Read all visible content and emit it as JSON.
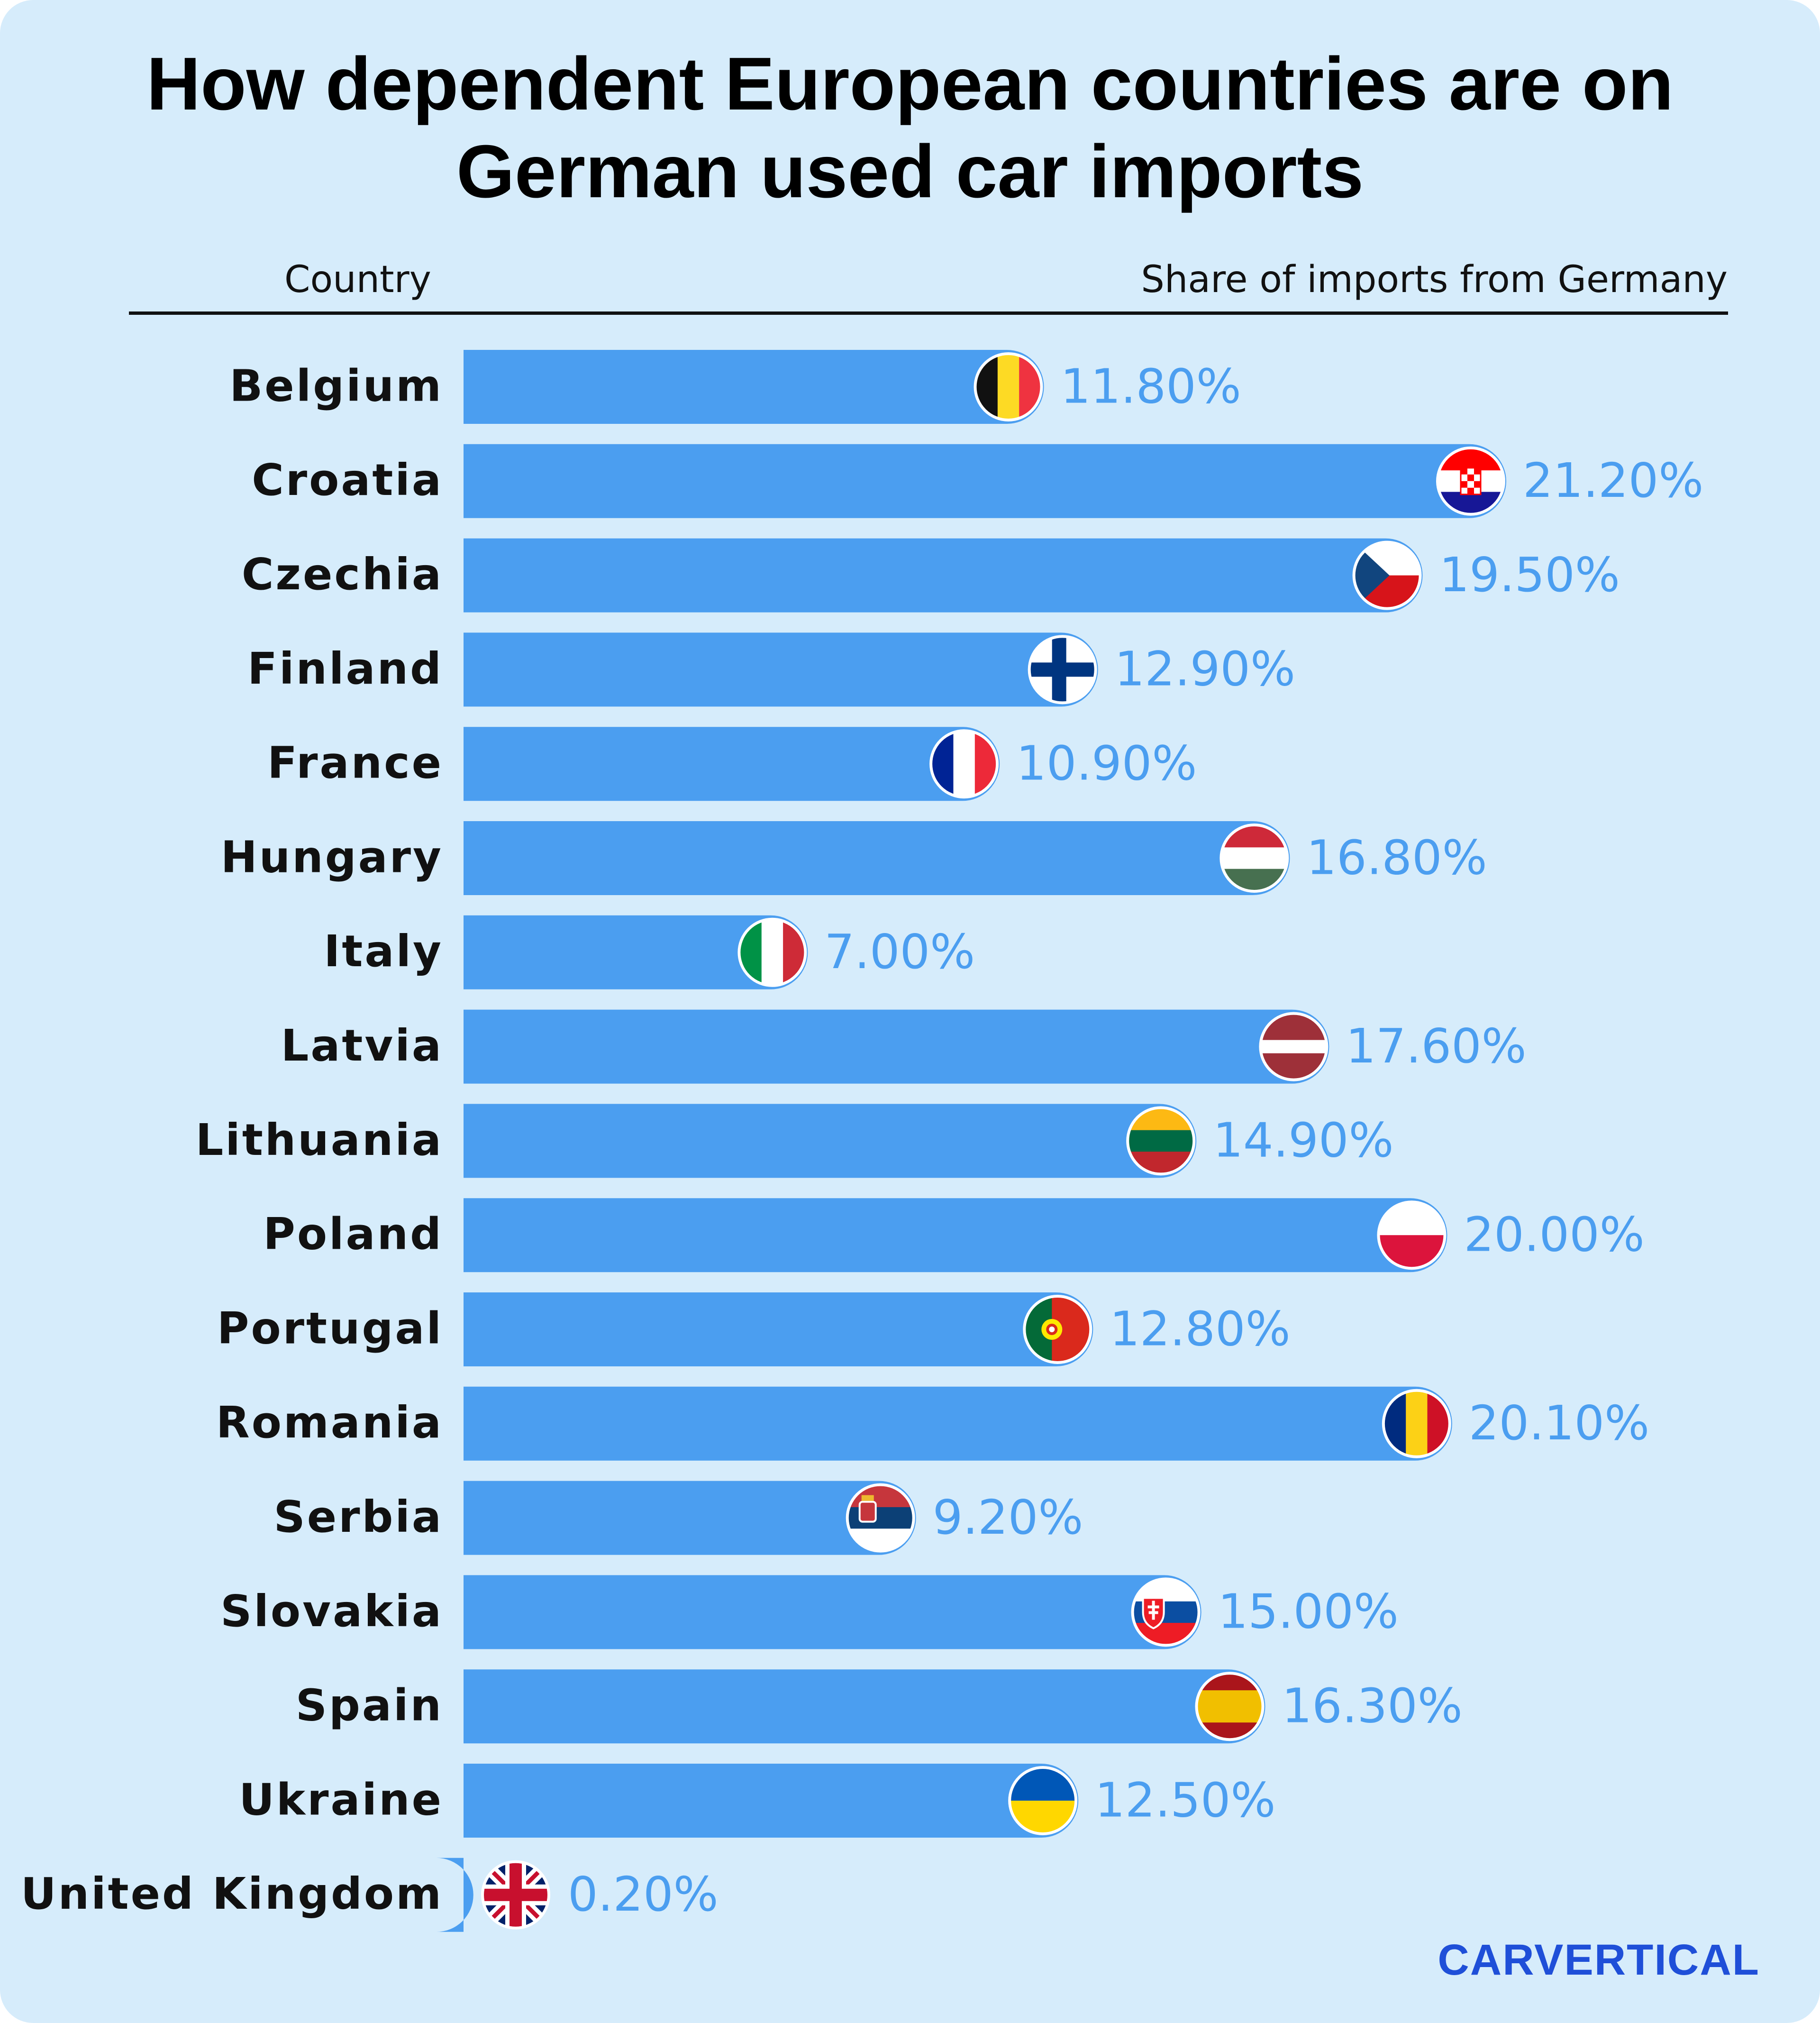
{
  "title_lines": [
    "How dependent European countries are on",
    "German used car imports"
  ],
  "headers": {
    "country": "Country",
    "share": "Share of imports from Germany"
  },
  "brand": "carVertical",
  "colors": {
    "background": "#d6ecfb",
    "bar": "#4b9ef0",
    "value_text": "#4b9ef0",
    "brand": "#1f4fd8"
  },
  "chart_data": {
    "type": "bar",
    "orientation": "horizontal",
    "title": "How dependent European countries are on German used car imports",
    "xlabel": "Share of imports from Germany",
    "ylabel": "Country",
    "xlim": [
      0,
      21.2
    ],
    "categories": [
      "Belgium",
      "Croatia",
      "Czechia",
      "Finland",
      "France",
      "Hungary",
      "Italy",
      "Latvia",
      "Lithuania",
      "Poland",
      "Portugal",
      "Romania",
      "Serbia",
      "Slovakia",
      "Spain",
      "Ukraine",
      "United Kingdom"
    ],
    "values": [
      11.8,
      21.2,
      19.5,
      12.9,
      10.9,
      16.8,
      7.0,
      17.6,
      14.9,
      20.0,
      12.8,
      20.1,
      9.2,
      15.0,
      16.3,
      12.5,
      0.2
    ],
    "value_labels": [
      "11.80%",
      "21.20%",
      "19.50%",
      "12.90%",
      "10.90%",
      "16.80%",
      "7.00%",
      "17.60%",
      "14.90%",
      "20.00%",
      "12.80%",
      "20.10%",
      "9.20%",
      "15.00%",
      "16.30%",
      "12.50%",
      "0.20%"
    ],
    "flag_icons": [
      "belgium-flag-icon",
      "croatia-flag-icon",
      "czechia-flag-icon",
      "finland-flag-icon",
      "france-flag-icon",
      "hungary-flag-icon",
      "italy-flag-icon",
      "latvia-flag-icon",
      "lithuania-flag-icon",
      "poland-flag-icon",
      "portugal-flag-icon",
      "romania-flag-icon",
      "serbia-flag-icon",
      "slovakia-flag-icon",
      "spain-flag-icon",
      "ukraine-flag-icon",
      "united-kingdom-flag-icon"
    ],
    "grid": false,
    "legend": "none"
  }
}
